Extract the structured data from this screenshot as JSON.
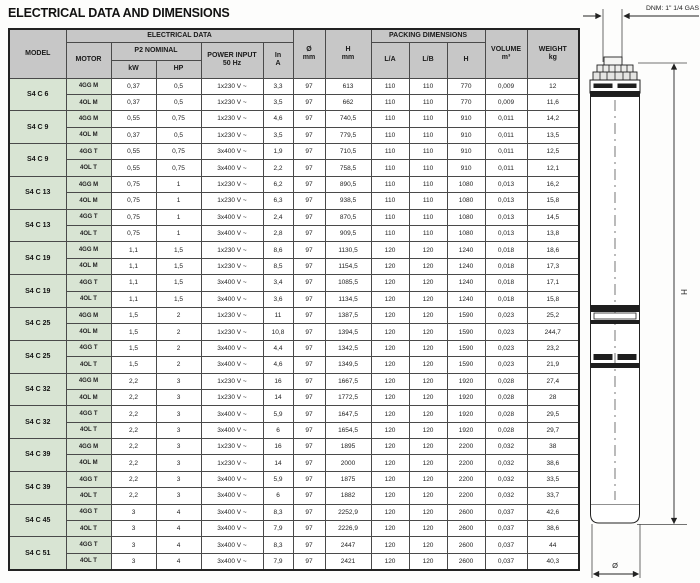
{
  "page": {
    "title": "ELECTRICAL DATA AND DIMENSIONS"
  },
  "table": {
    "headers": {
      "model": "MODEL",
      "electrical_data": "ELECTRICAL DATA",
      "motor": "MOTOR",
      "p2_nominal": "P2 NOMINAL",
      "kw": "kW",
      "hp": "HP",
      "power_input_line1": "POWER INPUT",
      "power_input_line2": "50 Hz",
      "in_line1": "In",
      "in_line2": "A",
      "dia_line1": "Ø",
      "dia_line2": "mm",
      "h_line1": "H",
      "h_line2": "mm",
      "packing_dimensions": "PACKING DIMENSIONS",
      "l_a": "L/A",
      "l_b": "L/B",
      "h_pack": "H",
      "volume_line1": "VOLUME",
      "volume_line2": "m³",
      "weight_line1": "WEIGHT",
      "weight_line2": "kg"
    },
    "groups": [
      {
        "model": "S4 C 6",
        "rows": [
          {
            "motor": "4GG M",
            "kw": "0,37",
            "hp": "0,5",
            "power_input": "1x230 V ~",
            "in_a": "3,3",
            "diameter": "97",
            "h": "613",
            "l_a": "110",
            "l_b": "110",
            "h_pack": "770",
            "volume": "0,009",
            "weight": "12"
          },
          {
            "motor": "4OL M",
            "kw": "0,37",
            "hp": "0,5",
            "power_input": "1x230 V ~",
            "in_a": "3,5",
            "diameter": "97",
            "h": "662",
            "l_a": "110",
            "l_b": "110",
            "h_pack": "770",
            "volume": "0,009",
            "weight": "11,6"
          }
        ]
      },
      {
        "model": "S4 C 9",
        "rows": [
          {
            "motor": "4GG M",
            "kw": "0,55",
            "hp": "0,75",
            "power_input": "1x230 V ~",
            "in_a": "4,6",
            "diameter": "97",
            "h": "740,5",
            "l_a": "110",
            "l_b": "110",
            "h_pack": "910",
            "volume": "0,011",
            "weight": "14,2"
          },
          {
            "motor": "4OL M",
            "kw": "0,37",
            "hp": "0,5",
            "power_input": "1x230 V ~",
            "in_a": "3,5",
            "diameter": "97",
            "h": "779,5",
            "l_a": "110",
            "l_b": "110",
            "h_pack": "910",
            "volume": "0,011",
            "weight": "13,5"
          }
        ]
      },
      {
        "model": "S4 C 9",
        "rows": [
          {
            "motor": "4GG T",
            "kw": "0,55",
            "hp": "0,75",
            "power_input": "3x400 V ~",
            "in_a": "1,9",
            "diameter": "97",
            "h": "710,5",
            "l_a": "110",
            "l_b": "110",
            "h_pack": "910",
            "volume": "0,011",
            "weight": "12,5"
          },
          {
            "motor": "4OL T",
            "kw": "0,55",
            "hp": "0,75",
            "power_input": "3x400 V ~",
            "in_a": "2,2",
            "diameter": "97",
            "h": "758,5",
            "l_a": "110",
            "l_b": "110",
            "h_pack": "910",
            "volume": "0,011",
            "weight": "12,1"
          }
        ]
      },
      {
        "model": "S4 C 13",
        "rows": [
          {
            "motor": "4GG M",
            "kw": "0,75",
            "hp": "1",
            "power_input": "1x230 V ~",
            "in_a": "6,2",
            "diameter": "97",
            "h": "890,5",
            "l_a": "110",
            "l_b": "110",
            "h_pack": "1080",
            "volume": "0,013",
            "weight": "16,2"
          },
          {
            "motor": "4OL M",
            "kw": "0,75",
            "hp": "1",
            "power_input": "1x230 V ~",
            "in_a": "6,3",
            "diameter": "97",
            "h": "938,5",
            "l_a": "110",
            "l_b": "110",
            "h_pack": "1080",
            "volume": "0,013",
            "weight": "15,8"
          }
        ]
      },
      {
        "model": "S4 C 13",
        "rows": [
          {
            "motor": "4GG T",
            "kw": "0,75",
            "hp": "1",
            "power_input": "3x400 V ~",
            "in_a": "2,4",
            "diameter": "97",
            "h": "870,5",
            "l_a": "110",
            "l_b": "110",
            "h_pack": "1080",
            "volume": "0,013",
            "weight": "14,5"
          },
          {
            "motor": "4OL T",
            "kw": "0,75",
            "hp": "1",
            "power_input": "3x400 V ~",
            "in_a": "2,8",
            "diameter": "97",
            "h": "909,5",
            "l_a": "110",
            "l_b": "110",
            "h_pack": "1080",
            "volume": "0,013",
            "weight": "13,8"
          }
        ]
      },
      {
        "model": "S4 C 19",
        "rows": [
          {
            "motor": "4GG M",
            "kw": "1,1",
            "hp": "1,5",
            "power_input": "1x230 V ~",
            "in_a": "8,6",
            "diameter": "97",
            "h": "1130,5",
            "l_a": "120",
            "l_b": "120",
            "h_pack": "1240",
            "volume": "0,018",
            "weight": "18,6"
          },
          {
            "motor": "4OL M",
            "kw": "1,1",
            "hp": "1,5",
            "power_input": "1x230 V ~",
            "in_a": "8,5",
            "diameter": "97",
            "h": "1154,5",
            "l_a": "120",
            "l_b": "120",
            "h_pack": "1240",
            "volume": "0,018",
            "weight": "17,3"
          }
        ]
      },
      {
        "model": "S4 C 19",
        "rows": [
          {
            "motor": "4GG T",
            "kw": "1,1",
            "hp": "1,5",
            "power_input": "3x400 V ~",
            "in_a": "3,4",
            "diameter": "97",
            "h": "1085,5",
            "l_a": "120",
            "l_b": "120",
            "h_pack": "1240",
            "volume": "0,018",
            "weight": "17,1"
          },
          {
            "motor": "4OL T",
            "kw": "1,1",
            "hp": "1,5",
            "power_input": "3x400 V ~",
            "in_a": "3,6",
            "diameter": "97",
            "h": "1134,5",
            "l_a": "120",
            "l_b": "120",
            "h_pack": "1240",
            "volume": "0,018",
            "weight": "15,8"
          }
        ]
      },
      {
        "model": "S4 C 25",
        "rows": [
          {
            "motor": "4GG M",
            "kw": "1,5",
            "hp": "2",
            "power_input": "1x230 V ~",
            "in_a": "11",
            "diameter": "97",
            "h": "1387,5",
            "l_a": "120",
            "l_b": "120",
            "h_pack": "1590",
            "volume": "0,023",
            "weight": "25,2"
          },
          {
            "motor": "4OL M",
            "kw": "1,5",
            "hp": "2",
            "power_input": "1x230 V ~",
            "in_a": "10,8",
            "diameter": "97",
            "h": "1394,5",
            "l_a": "120",
            "l_b": "120",
            "h_pack": "1590",
            "volume": "0,023",
            "weight": "244,7"
          }
        ]
      },
      {
        "model": "S4 C 25",
        "rows": [
          {
            "motor": "4GG T",
            "kw": "1,5",
            "hp": "2",
            "power_input": "3x400 V ~",
            "in_a": "4,4",
            "diameter": "97",
            "h": "1342,5",
            "l_a": "120",
            "l_b": "120",
            "h_pack": "1590",
            "volume": "0,023",
            "weight": "23,2"
          },
          {
            "motor": "4OL T",
            "kw": "1,5",
            "hp": "2",
            "power_input": "3x400 V ~",
            "in_a": "4,6",
            "diameter": "97",
            "h": "1349,5",
            "l_a": "120",
            "l_b": "120",
            "h_pack": "1590",
            "volume": "0,023",
            "weight": "21,9"
          }
        ]
      },
      {
        "model": "S4 C 32",
        "rows": [
          {
            "motor": "4GG M",
            "kw": "2,2",
            "hp": "3",
            "power_input": "1x230 V ~",
            "in_a": "16",
            "diameter": "97",
            "h": "1667,5",
            "l_a": "120",
            "l_b": "120",
            "h_pack": "1920",
            "volume": "0,028",
            "weight": "27,4"
          },
          {
            "motor": "4OL M",
            "kw": "2,2",
            "hp": "3",
            "power_input": "1x230 V ~",
            "in_a": "14",
            "diameter": "97",
            "h": "1772,5",
            "l_a": "120",
            "l_b": "120",
            "h_pack": "1920",
            "volume": "0,028",
            "weight": "28"
          }
        ]
      },
      {
        "model": "S4 C 32",
        "rows": [
          {
            "motor": "4GG T",
            "kw": "2,2",
            "hp": "3",
            "power_input": "3x400 V ~",
            "in_a": "5,9",
            "diameter": "97",
            "h": "1647,5",
            "l_a": "120",
            "l_b": "120",
            "h_pack": "1920",
            "volume": "0,028",
            "weight": "29,5"
          },
          {
            "motor": "4OL T",
            "kw": "2,2",
            "hp": "3",
            "power_input": "3x400 V ~",
            "in_a": "6",
            "diameter": "97",
            "h": "1654,5",
            "l_a": "120",
            "l_b": "120",
            "h_pack": "1920",
            "volume": "0,028",
            "weight": "29,7"
          }
        ]
      },
      {
        "model": "S4 C 39",
        "rows": [
          {
            "motor": "4GG M",
            "kw": "2,2",
            "hp": "3",
            "power_input": "1x230 V ~",
            "in_a": "16",
            "diameter": "97",
            "h": "1895",
            "l_a": "120",
            "l_b": "120",
            "h_pack": "2200",
            "volume": "0,032",
            "weight": "38"
          },
          {
            "motor": "4OL M",
            "kw": "2,2",
            "hp": "3",
            "power_input": "1x230 V ~",
            "in_a": "14",
            "diameter": "97",
            "h": "2000",
            "l_a": "120",
            "l_b": "120",
            "h_pack": "2200",
            "volume": "0,032",
            "weight": "38,6"
          }
        ]
      },
      {
        "model": "S4 C 39",
        "rows": [
          {
            "motor": "4GG T",
            "kw": "2,2",
            "hp": "3",
            "power_input": "3x400 V ~",
            "in_a": "5,9",
            "diameter": "97",
            "h": "1875",
            "l_a": "120",
            "l_b": "120",
            "h_pack": "2200",
            "volume": "0,032",
            "weight": "33,5"
          },
          {
            "motor": "4OL T",
            "kw": "2,2",
            "hp": "3",
            "power_input": "3x400 V ~",
            "in_a": "6",
            "diameter": "97",
            "h": "1882",
            "l_a": "120",
            "l_b": "120",
            "h_pack": "2200",
            "volume": "0,032",
            "weight": "33,7"
          }
        ]
      },
      {
        "model": "S4 C 45",
        "rows": [
          {
            "motor": "4GG T",
            "kw": "3",
            "hp": "4",
            "power_input": "3x400 V ~",
            "in_a": "8,3",
            "diameter": "97",
            "h": "2252,9",
            "l_a": "120",
            "l_b": "120",
            "h_pack": "2600",
            "volume": "0,037",
            "weight": "42,6"
          },
          {
            "motor": "4OL T",
            "kw": "3",
            "hp": "4",
            "power_input": "3x400 V ~",
            "in_a": "7,9",
            "diameter": "97",
            "h": "2226,9",
            "l_a": "120",
            "l_b": "120",
            "h_pack": "2600",
            "volume": "0,037",
            "weight": "38,6"
          }
        ]
      },
      {
        "model": "S4 C 51",
        "rows": [
          {
            "motor": "4GG T",
            "kw": "3",
            "hp": "4",
            "power_input": "3x400 V ~",
            "in_a": "8,3",
            "diameter": "97",
            "h": "2447",
            "l_a": "120",
            "l_b": "120",
            "h_pack": "2600",
            "volume": "0,037",
            "weight": "44"
          },
          {
            "motor": "4OL T",
            "kw": "3",
            "hp": "4",
            "power_input": "3x400 V ~",
            "in_a": "7,9",
            "diameter": "97",
            "h": "2421",
            "l_a": "120",
            "l_b": "120",
            "h_pack": "2600",
            "volume": "0,037",
            "weight": "40,3"
          }
        ]
      }
    ]
  },
  "drawing": {
    "dnm_label": "DNM: 1\" 1/4 GAS",
    "h_label": "H",
    "diameter_label": "Ø"
  }
}
